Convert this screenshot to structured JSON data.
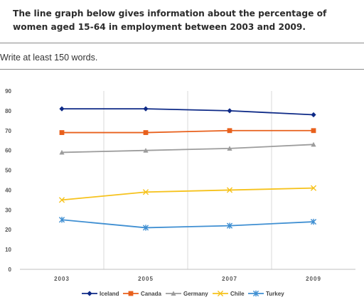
{
  "prompt": {
    "text": "The line graph below gives information about the percentage of women aged 15-64 in employment between 2003 and 2009."
  },
  "instruction": {
    "text": "Write at least 150 words."
  },
  "chart_data": {
    "type": "line",
    "x": [
      "2003",
      "2005",
      "2007",
      "2009"
    ],
    "ylim": [
      0,
      90
    ],
    "yticks": [
      0,
      10,
      20,
      30,
      40,
      50,
      60,
      70,
      80,
      90
    ],
    "grid": "vertical",
    "legend_position": "bottom",
    "series": [
      {
        "name": "Iceland",
        "values": [
          81,
          81,
          80,
          78
        ],
        "color": "#0e2a87",
        "marker": "diamond"
      },
      {
        "name": "Canada",
        "values": [
          69,
          69,
          70,
          70
        ],
        "color": "#e8601c",
        "marker": "square"
      },
      {
        "name": "Germany",
        "values": [
          59,
          60,
          61,
          63
        ],
        "color": "#9c9c9c",
        "marker": "triangle"
      },
      {
        "name": "Chile",
        "values": [
          35,
          39,
          40,
          41
        ],
        "color": "#f6c21c",
        "marker": "x"
      },
      {
        "name": "Turkey",
        "values": [
          25,
          21,
          22,
          24
        ],
        "color": "#3f8fd2",
        "marker": "star"
      }
    ]
  }
}
